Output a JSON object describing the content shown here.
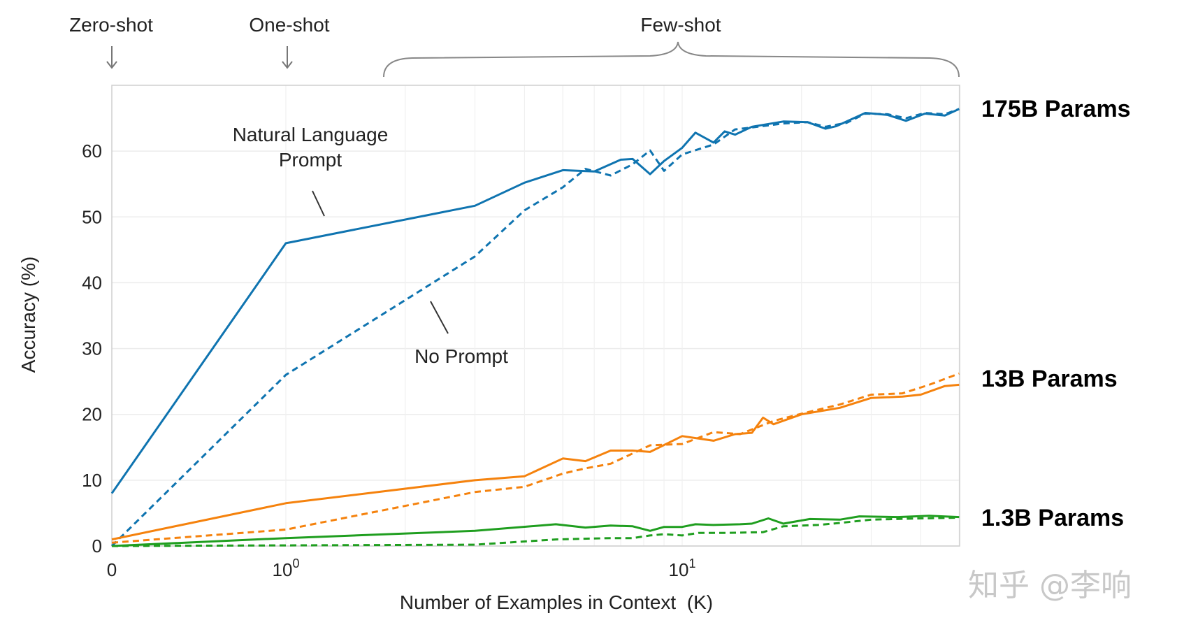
{
  "chart_data": {
    "type": "line",
    "title": "",
    "xlabel": "Number of Examples in Context  (K)",
    "ylabel": "Accuracy (%)",
    "xscale": "symlog (linear 0-1, log above 1)",
    "xlim": [
      0,
      50
    ],
    "ylim": [
      0,
      70
    ],
    "grid": true,
    "x_ticks": [
      {
        "value": 0,
        "label": "0"
      },
      {
        "value": 1,
        "label": "10",
        "exp": "0"
      },
      {
        "value": 10,
        "label": "10",
        "exp": "1"
      }
    ],
    "y_ticks": [
      0,
      10,
      20,
      30,
      40,
      50,
      60
    ],
    "regions": {
      "zero_shot": "Zero-shot",
      "one_shot": "One-shot",
      "few_shot": "Few-shot"
    },
    "annotations": {
      "natural_language_line1": "Natural Language",
      "natural_language_line2": "Prompt",
      "no_prompt": "No Prompt"
    },
    "model_labels": [
      {
        "text": "175B Params",
        "color": "#2e95c9"
      },
      {
        "text": "13B Params",
        "color": "#f4861c"
      },
      {
        "text": "1.3B Params",
        "color": "#1ea51e"
      }
    ],
    "series": [
      {
        "name": "175B Natural Language Prompt",
        "color": "#0f74b0",
        "style": "solid",
        "x": [
          0,
          1,
          3,
          4,
          5,
          6,
          7,
          7.5,
          8.3,
          9,
          10,
          10.8,
          12,
          12.8,
          13.6,
          15,
          18,
          20.7,
          23,
          24.5,
          29,
          33,
          36.7,
          41,
          46,
          50
        ],
        "y": [
          8,
          46,
          51.7,
          55.2,
          57.1,
          56.9,
          58.7,
          58.8,
          56.5,
          58.5,
          60.5,
          62.8,
          61.3,
          63,
          62.5,
          63.7,
          64.5,
          64.4,
          63.4,
          63.8,
          65.8,
          65.5,
          64.6,
          65.7,
          65.4,
          66.4
        ]
      },
      {
        "name": "175B No Prompt",
        "color": "#0f74b0",
        "style": "dashed",
        "x": [
          0,
          1,
          3,
          4,
          5,
          5.7,
          6.6,
          7.5,
          8.3,
          9,
          10,
          12,
          13.6,
          15,
          18,
          20.7,
          23,
          26,
          29,
          33,
          36.7,
          41,
          46,
          50
        ],
        "y": [
          0,
          26,
          44,
          51,
          54.5,
          57.3,
          56.3,
          58,
          60.1,
          57,
          59.5,
          61,
          63.3,
          63.6,
          64.2,
          64.4,
          63.7,
          64.3,
          65.7,
          65.6,
          65,
          65.8,
          65.6,
          66.4
        ]
      },
      {
        "name": "13B Natural Language Prompt",
        "color": "#f5820d",
        "style": "solid",
        "x": [
          0,
          1,
          3,
          4,
          5,
          5.7,
          6.6,
          7.5,
          8.3,
          10,
          12,
          13.6,
          15,
          16,
          17,
          20,
          25,
          30,
          36,
          40,
          46,
          50
        ],
        "y": [
          1,
          6.5,
          10,
          10.6,
          13.3,
          12.9,
          14.5,
          14.5,
          14.3,
          16.7,
          16,
          17,
          17.2,
          19.5,
          18.5,
          20,
          21,
          22.5,
          22.7,
          23,
          24.3,
          24.5
        ]
      },
      {
        "name": "13B No Prompt",
        "color": "#f5820d",
        "style": "dashed",
        "x": [
          0,
          1,
          3,
          4,
          5,
          5.7,
          6.6,
          8.3,
          10,
          12,
          14,
          17,
          20,
          25,
          30,
          36,
          42,
          50
        ],
        "y": [
          0.5,
          2.5,
          8.2,
          9,
          11,
          11.8,
          12.5,
          15.3,
          15.5,
          17.3,
          17,
          19,
          20.1,
          21.5,
          23,
          23.2,
          24.5,
          26.2
        ]
      },
      {
        "name": "1.3B Natural Language Prompt",
        "color": "#1f9e1f",
        "style": "solid",
        "x": [
          0,
          1,
          3,
          4.8,
          5.7,
          6.6,
          7.5,
          8.3,
          9,
          10,
          10.8,
          12,
          14,
          15,
          16.5,
          18,
          21,
          25,
          28,
          35,
          42,
          50
        ],
        "y": [
          0,
          1.2,
          2.3,
          3.3,
          2.8,
          3.1,
          3,
          2.3,
          2.9,
          2.9,
          3.3,
          3.2,
          3.3,
          3.4,
          4.2,
          3.4,
          4.1,
          4,
          4.5,
          4.4,
          4.6,
          4.4
        ]
      },
      {
        "name": "1.3B No Prompt",
        "color": "#1f9e1f",
        "style": "dashed",
        "x": [
          0,
          3,
          4.8,
          6.6,
          7.5,
          8.3,
          9,
          10,
          11,
          13,
          16,
          18,
          22,
          25,
          30,
          40,
          50
        ],
        "y": [
          0,
          0.2,
          1,
          1.2,
          1.2,
          1.6,
          1.8,
          1.6,
          2,
          2,
          2.1,
          3,
          3.2,
          3.5,
          4,
          4.2,
          4.3
        ]
      }
    ]
  },
  "watermark": "知乎 @李响"
}
